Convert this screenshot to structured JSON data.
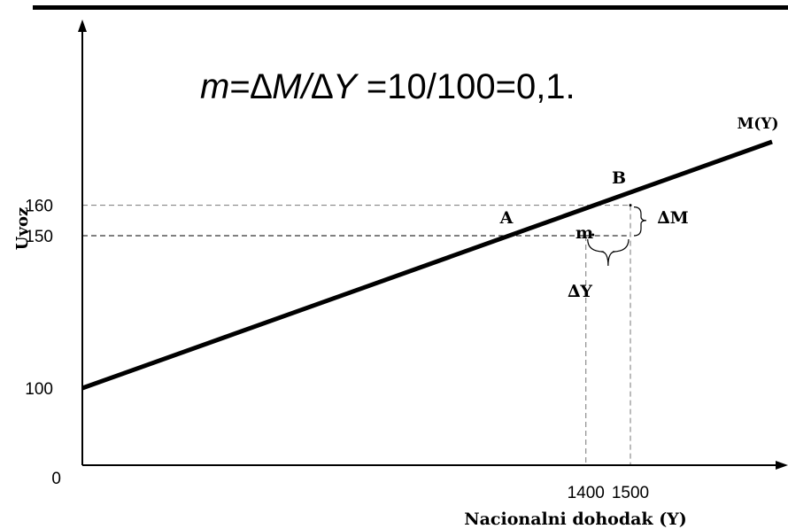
{
  "formula": {
    "m": "m",
    "eq1": "=",
    "dM": "∆M",
    "slash": "/",
    "dY": "∆Y",
    "rest": " =10/100=0,1."
  },
  "chart_data": {
    "type": "line",
    "xlabel": "Nacionalni dohodak (Y)",
    "ylabel": "Uvoz",
    "origin_label": "0",
    "series": [
      {
        "name": "M(Y)",
        "x": [
          0,
          1400,
          1500,
          1620
        ],
        "values": [
          100,
          150,
          160,
          172
        ]
      }
    ],
    "x_ticks": [
      {
        "value": 1400,
        "label": "1400"
      },
      {
        "value": 1500,
        "label": "1500"
      }
    ],
    "y_ticks": [
      {
        "value": 100,
        "label": "100"
      },
      {
        "value": 150,
        "label": "150"
      },
      {
        "value": 160,
        "label": "160"
      }
    ],
    "points": [
      {
        "label": "A",
        "x": 1400,
        "y": 150
      },
      {
        "label": "B",
        "x": 1500,
        "y": 160
      }
    ],
    "annotations": {
      "delta_y": "∆Y",
      "delta_m": "∆M",
      "slope": "m"
    },
    "colors": {
      "line": "#000000",
      "guides": "#777777",
      "guides_dark": "#000000"
    }
  }
}
